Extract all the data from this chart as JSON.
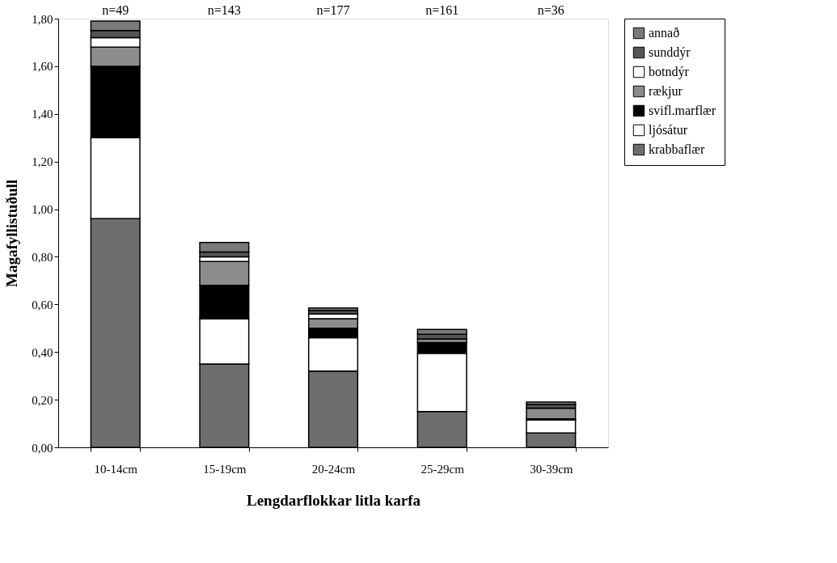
{
  "chart_data": {
    "type": "bar",
    "stacked": true,
    "xlabel": "Lengdarflokkar litla karfa",
    "ylabel": "Magafyllistuðull",
    "categories": [
      "10-14cm",
      "15-19cm",
      "20-24cm",
      "25-29cm",
      "30-39cm"
    ],
    "series": [
      {
        "name": "krabbaflær",
        "color": "#6e6e6e",
        "values": [
          0.96,
          0.35,
          0.32,
          0.15,
          0.06
        ]
      },
      {
        "name": "ljósátur",
        "color": "#ffffff",
        "values": [
          0.34,
          0.19,
          0.14,
          0.245,
          0.055
        ]
      },
      {
        "name": "svifl.marflær",
        "color": "#000000",
        "values": [
          0.3,
          0.14,
          0.04,
          0.045,
          0.005
        ]
      },
      {
        "name": "rækjur",
        "color": "#8c8c8c",
        "values": [
          0.08,
          0.1,
          0.04,
          0.015,
          0.045
        ]
      },
      {
        "name": "botndýr",
        "color": "#ffffff",
        "values": [
          0.04,
          0.02,
          0.02,
          0,
          0
        ]
      },
      {
        "name": "sunddýr",
        "color": "#555555",
        "values": [
          0.03,
          0.02,
          0.015,
          0.02,
          0.015
        ]
      },
      {
        "name": "annað",
        "color": "#7a7a7a",
        "values": [
          0.04,
          0.04,
          0.01,
          0.02,
          0.01
        ]
      }
    ],
    "ylim": [
      0,
      1.8
    ],
    "yticks": [
      {
        "value": 0,
        "label": "0,00"
      },
      {
        "value": 0.2,
        "label": "0,20"
      },
      {
        "value": 0.4,
        "label": "0,40"
      },
      {
        "value": 0.6,
        "label": "0,60"
      },
      {
        "value": 0.8,
        "label": "0,80"
      },
      {
        "value": 1.0,
        "label": "1,00"
      },
      {
        "value": 1.2,
        "label": "1,20"
      },
      {
        "value": 1.4,
        "label": "1,40"
      },
      {
        "value": 1.6,
        "label": "1,60"
      },
      {
        "value": 1.8,
        "label": "1,80"
      }
    ],
    "annotations": [
      "n=49",
      "n=143",
      "n=177",
      "n=161",
      "n=36"
    ],
    "legend": "right",
    "grid": false
  }
}
